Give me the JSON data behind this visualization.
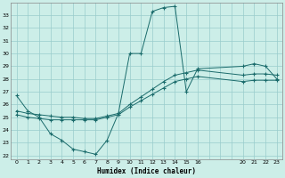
{
  "xlabel": "Humidex (Indice chaleur)",
  "ylabel": "",
  "bg_color": "#cceee8",
  "grid_color": "#99cccc",
  "line_color": "#1a6b6b",
  "xlim": [
    -0.5,
    23.5
  ],
  "ylim": [
    21.7,
    34.0
  ],
  "yticks": [
    22,
    23,
    24,
    25,
    26,
    27,
    28,
    29,
    30,
    31,
    32,
    33
  ],
  "xticks": [
    0,
    1,
    2,
    3,
    4,
    5,
    6,
    7,
    8,
    9,
    10,
    11,
    12,
    13,
    14,
    15,
    16,
    17,
    18,
    19,
    20,
    21,
    22,
    23
  ],
  "xtick_labels": [
    "0",
    "1",
    "2",
    "3",
    "4",
    "5",
    "6",
    "7",
    "8",
    "9",
    "10",
    "11",
    "12",
    "13",
    "14",
    "15",
    "16",
    "",
    "",
    "",
    "20",
    "21",
    "22",
    "23"
  ],
  "line1_x": [
    0,
    1,
    2,
    3,
    4,
    5,
    6,
    7,
    8,
    9,
    10,
    11,
    12,
    13,
    14,
    15,
    16,
    20,
    21,
    22,
    23
  ],
  "line1_y": [
    26.7,
    25.5,
    25.0,
    23.7,
    23.2,
    22.5,
    22.3,
    22.1,
    23.2,
    25.3,
    30.0,
    30.0,
    33.3,
    33.6,
    33.7,
    27.0,
    28.8,
    29.0,
    29.2,
    29.0,
    28.0
  ],
  "line2_x": [
    0,
    1,
    2,
    3,
    4,
    5,
    6,
    7,
    8,
    9,
    10,
    11,
    12,
    13,
    14,
    15,
    16,
    20,
    21,
    22,
    23
  ],
  "line2_y": [
    25.2,
    25.0,
    24.9,
    24.8,
    24.8,
    24.8,
    24.8,
    24.8,
    25.0,
    25.2,
    25.8,
    26.3,
    26.8,
    27.3,
    27.8,
    28.0,
    28.2,
    27.8,
    27.9,
    27.9,
    27.9
  ],
  "line3_x": [
    0,
    1,
    2,
    3,
    4,
    5,
    6,
    7,
    8,
    9,
    10,
    11,
    12,
    13,
    14,
    15,
    16,
    20,
    21,
    22,
    23
  ],
  "line3_y": [
    25.5,
    25.3,
    25.2,
    25.1,
    25.0,
    25.0,
    24.9,
    24.9,
    25.1,
    25.3,
    26.0,
    26.6,
    27.2,
    27.8,
    28.3,
    28.5,
    28.7,
    28.3,
    28.4,
    28.4,
    28.3
  ]
}
